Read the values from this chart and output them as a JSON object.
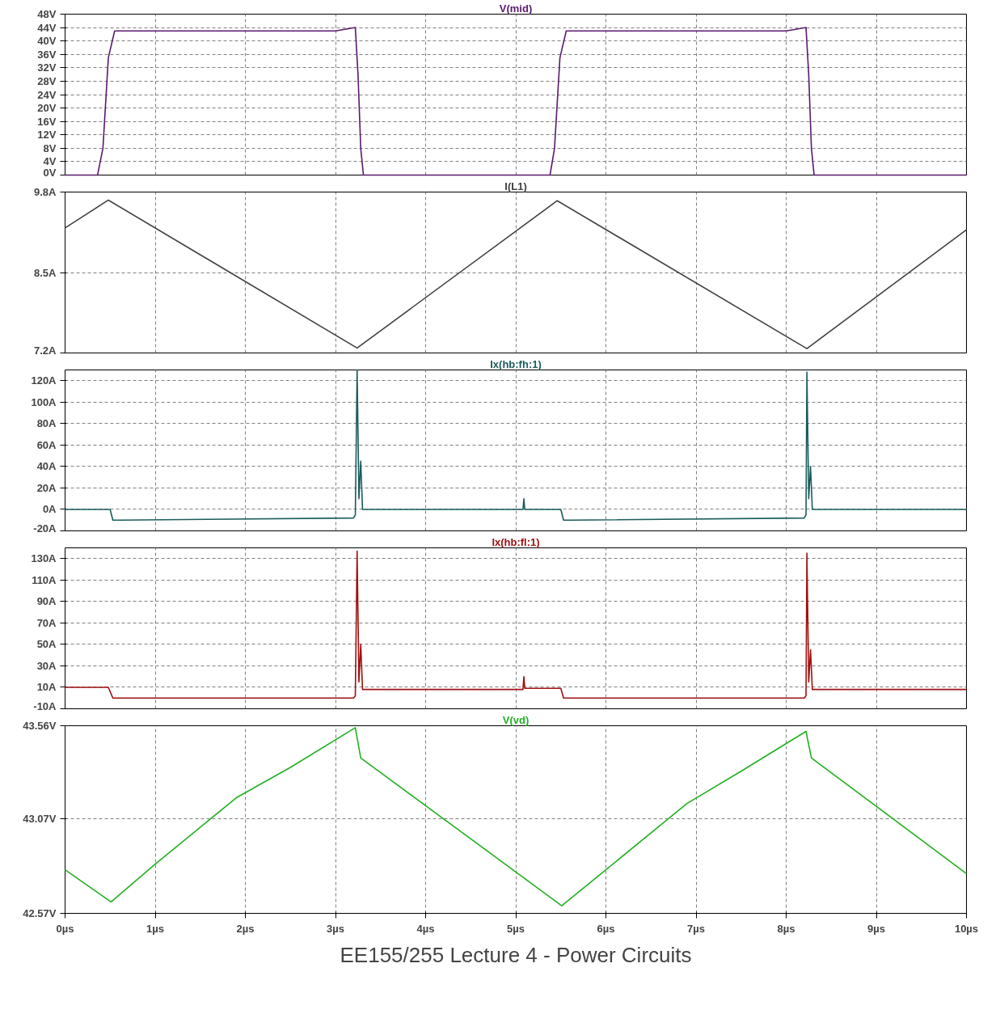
{
  "chart_data": [
    {
      "type": "line",
      "title": "V(mid)",
      "xlim": [
        0,
        10
      ],
      "ylim": [
        0,
        48
      ],
      "xticks": [
        0,
        1,
        2,
        3,
        4,
        5,
        6,
        7,
        8,
        9,
        10
      ],
      "yticks": [
        {
          "value": 0,
          "label": "0V"
        },
        {
          "value": 4,
          "label": "4V"
        },
        {
          "value": 8,
          "label": "8V"
        },
        {
          "value": 12,
          "label": "12V"
        },
        {
          "value": 16,
          "label": "16V"
        },
        {
          "value": 20,
          "label": "20V"
        },
        {
          "value": 24,
          "label": "24V"
        },
        {
          "value": 28,
          "label": "28V"
        },
        {
          "value": 32,
          "label": "32V"
        },
        {
          "value": 36,
          "label": "36V"
        },
        {
          "value": 40,
          "label": "40V"
        },
        {
          "value": 44,
          "label": "44V"
        },
        {
          "value": 48,
          "label": "48V"
        }
      ],
      "grid": true,
      "tick_labels": "y",
      "series": [
        {
          "color": "#5a1a6e",
          "x": [
            0,
            0.36,
            0.42,
            0.48,
            0.55,
            3.0,
            3.22,
            3.25,
            3.28,
            3.31,
            5.38,
            5.43,
            5.49,
            5.56,
            8.0,
            8.22,
            8.25,
            8.28,
            8.31,
            10
          ],
          "values": [
            0,
            0,
            8,
            35,
            43,
            43,
            44,
            30,
            8,
            0,
            0,
            8,
            35,
            43,
            43,
            44,
            30,
            8,
            0,
            0
          ]
        }
      ]
    },
    {
      "type": "line",
      "title": "I(L1)",
      "xlim": [
        0,
        10
      ],
      "ylim": [
        7.2,
        9.8
      ],
      "xticks": [
        0,
        1,
        2,
        3,
        4,
        5,
        6,
        7,
        8,
        9,
        10
      ],
      "yticks": [
        {
          "value": 7.2,
          "label": "7.2A"
        },
        {
          "value": 8.5,
          "label": "8.5A"
        },
        {
          "value": 9.8,
          "label": "9.8A"
        }
      ],
      "grid": true,
      "tick_labels": "y",
      "series": [
        {
          "color": "#404040",
          "x": [
            0,
            0.48,
            3.24,
            5.46,
            8.23,
            10
          ],
          "values": [
            9.22,
            9.67,
            7.28,
            9.66,
            7.27,
            9.19
          ]
        }
      ]
    },
    {
      "type": "line",
      "title": "Ix(hb:fh:1)",
      "xlim": [
        0,
        10
      ],
      "ylim": [
        -20,
        130
      ],
      "xticks": [
        0,
        1,
        2,
        3,
        4,
        5,
        6,
        7,
        8,
        9,
        10
      ],
      "yticks": [
        {
          "value": -20,
          "label": "-20A"
        },
        {
          "value": 0,
          "label": "0A"
        },
        {
          "value": 20,
          "label": "20A"
        },
        {
          "value": 40,
          "label": "40A"
        },
        {
          "value": 60,
          "label": "60A"
        },
        {
          "value": 80,
          "label": "80A"
        },
        {
          "value": 100,
          "label": "100A"
        },
        {
          "value": 120,
          "label": "120A"
        }
      ],
      "grid": true,
      "tick_labels": "y",
      "series": [
        {
          "color": "#1a5c5c",
          "x": [
            0,
            0.5,
            0.53,
            0.6,
            3.2,
            3.22,
            3.24,
            3.26,
            3.28,
            3.3,
            5.08,
            5.09,
            5.1,
            5.5,
            5.53,
            5.6,
            8.2,
            8.22,
            8.23,
            8.25,
            8.27,
            8.29,
            10
          ],
          "values": [
            0,
            0,
            -10,
            -10,
            -8,
            -5,
            130,
            10,
            45,
            0,
            0,
            10,
            0,
            0,
            -10,
            -10,
            -8,
            -5,
            128,
            10,
            40,
            0,
            0
          ]
        }
      ]
    },
    {
      "type": "line",
      "title": "Ix(hb:fl:1)",
      "xlim": [
        0,
        10
      ],
      "ylim": [
        -10,
        140
      ],
      "xticks": [
        0,
        1,
        2,
        3,
        4,
        5,
        6,
        7,
        8,
        9,
        10
      ],
      "yticks": [
        {
          "value": -10,
          "label": "-10A"
        },
        {
          "value": 10,
          "label": "10A"
        },
        {
          "value": 30,
          "label": "30A"
        },
        {
          "value": 50,
          "label": "50A"
        },
        {
          "value": 70,
          "label": "70A"
        },
        {
          "value": 90,
          "label": "90A"
        },
        {
          "value": 110,
          "label": "110A"
        },
        {
          "value": 130,
          "label": "130A"
        }
      ],
      "grid": true,
      "tick_labels": "y",
      "series": [
        {
          "color": "#a01010",
          "x": [
            0,
            0.48,
            0.53,
            3.2,
            3.22,
            3.24,
            3.26,
            3.28,
            3.3,
            5.08,
            5.09,
            5.1,
            5.5,
            5.53,
            8.2,
            8.22,
            8.23,
            8.25,
            8.27,
            8.29,
            10
          ],
          "values": [
            10,
            10,
            0,
            0,
            2,
            137,
            15,
            50,
            8,
            8,
            20,
            9,
            9,
            0,
            0,
            2,
            135,
            15,
            45,
            8,
            8
          ]
        }
      ]
    },
    {
      "type": "line",
      "title": "V(vd)",
      "xlim": [
        0,
        10
      ],
      "ylim": [
        42.57,
        43.56
      ],
      "xticks": [
        {
          "value": 0,
          "label": "0µs"
        },
        {
          "value": 1,
          "label": "1µs"
        },
        {
          "value": 2,
          "label": "2µs"
        },
        {
          "value": 3,
          "label": "3µs"
        },
        {
          "value": 4,
          "label": "4µs"
        },
        {
          "value": 5,
          "label": "5µs"
        },
        {
          "value": 6,
          "label": "6µs"
        },
        {
          "value": 7,
          "label": "7µs"
        },
        {
          "value": 8,
          "label": "8µs"
        },
        {
          "value": 9,
          "label": "9µs"
        },
        {
          "value": 10,
          "label": "10µs"
        }
      ],
      "yticks": [
        {
          "value": 42.57,
          "label": "42.57V"
        },
        {
          "value": 43.07,
          "label": "43.07V"
        },
        {
          "value": 43.56,
          "label": "43.56V"
        }
      ],
      "grid": true,
      "annotations": [
        "EE155/255 Lecture 4 - Power Circuits"
      ],
      "series": [
        {
          "color": "#22b022",
          "x": [
            0,
            0.51,
            1.0,
            1.9,
            2.5,
            3.22,
            3.28,
            5.51,
            6.0,
            6.9,
            7.5,
            8.22,
            8.28,
            10
          ],
          "values": [
            42.8,
            42.63,
            42.83,
            43.18,
            43.34,
            43.55,
            43.39,
            42.61,
            42.8,
            43.15,
            43.32,
            43.53,
            43.39,
            42.78
          ]
        }
      ]
    }
  ]
}
